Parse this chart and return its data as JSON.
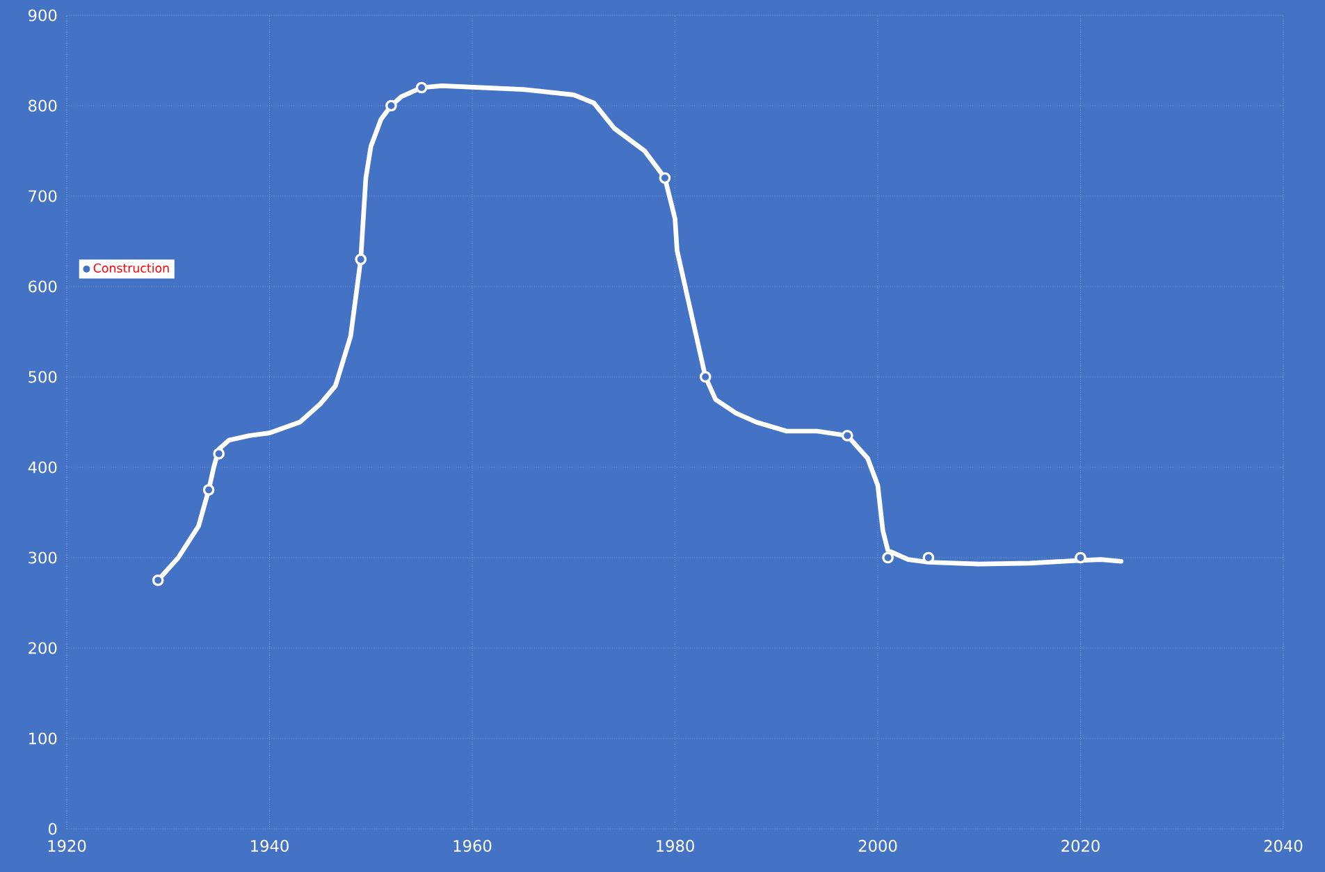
{
  "chart_data": {
    "type": "line",
    "xlim": [
      1920,
      2040
    ],
    "ylim": [
      0,
      900
    ],
    "xticks": [
      1920,
      1940,
      1960,
      1980,
      2000,
      2020,
      2040
    ],
    "yticks": [
      0,
      100,
      200,
      300,
      400,
      500,
      600,
      700,
      800,
      900
    ],
    "grid": true,
    "legend": "top left",
    "series": [
      {
        "color": "#ffffff",
        "marker": "none",
        "x": [
          1929,
          1931,
          1933,
          1934,
          1934.5,
          1935,
          1936,
          1938,
          1940,
          1943,
          1945,
          1946.5,
          1948,
          1949,
          1949.5,
          1950,
          1951,
          1952,
          1953,
          1955,
          1957,
          1965,
          1970,
          1972,
          1974,
          1977,
          1979,
          1980,
          1980.2,
          1981,
          1982,
          1983,
          1984,
          1986,
          1988,
          1991,
          1994,
          1997,
          1999,
          2000,
          2000.5,
          2001,
          2003,
          2005,
          2010,
          2015,
          2020,
          2022,
          2024
        ],
        "values": [
          275,
          300,
          335,
          375,
          400,
          420,
          430,
          435,
          438,
          450,
          470,
          490,
          545,
          630,
          720,
          755,
          785,
          800,
          810,
          820,
          822,
          818,
          812,
          803,
          775,
          750,
          720,
          675,
          640,
          600,
          550,
          500,
          475,
          460,
          450,
          440,
          440,
          435,
          410,
          380,
          330,
          308,
          298,
          295,
          293,
          294,
          297,
          298,
          296
        ]
      },
      {
        "type": "scatter",
        "name": "Construction",
        "color": "#ffffff",
        "marker": "circle",
        "x": [
          1929,
          1934,
          1935,
          1949,
          1952,
          1955,
          1979,
          1983,
          1997,
          2001,
          2005,
          2020
        ],
        "values": [
          275,
          375,
          415,
          630,
          800,
          820,
          720,
          500,
          435,
          300,
          300,
          300
        ]
      }
    ]
  }
}
